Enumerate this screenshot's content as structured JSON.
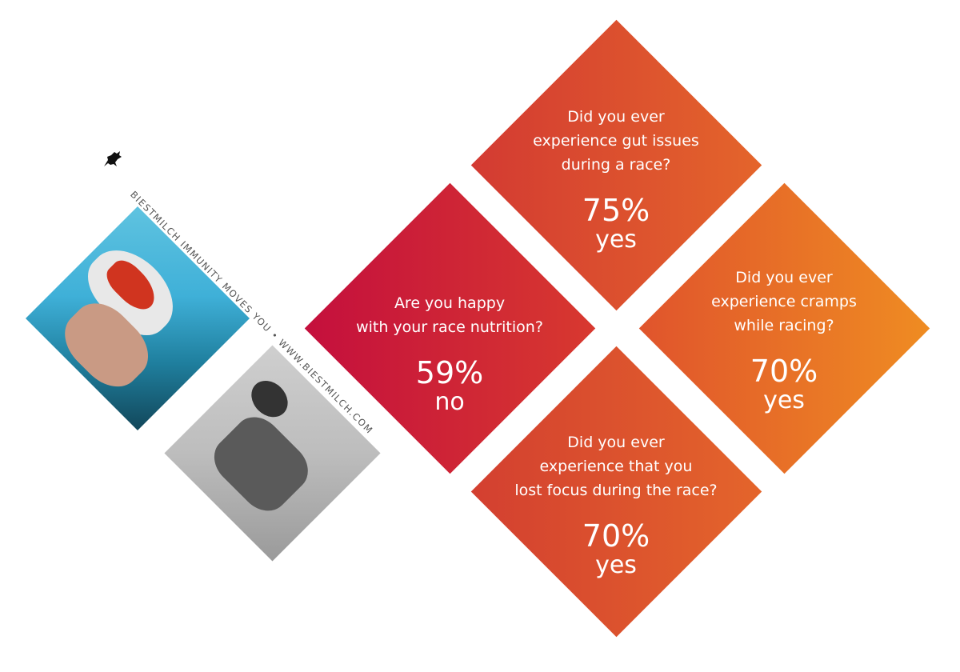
{
  "brand": {
    "logo": "Biestmilch",
    "tagline": "BIESTMILCH IMMUNITY MOVES YOU • WWW.BIESTMILCH.COM"
  },
  "photos": [
    {
      "name": "swimmer-photo",
      "subject": "swimmer with cap and goggles in pool"
    },
    {
      "name": "cyclist-photo",
      "subject": "triathlete cyclist with helmet number 25"
    }
  ],
  "colors": {
    "gradient_start": "#c40f3d",
    "gradient_end": "#ef8c22",
    "text": "#ffffff"
  },
  "cards": [
    {
      "id": "nutrition",
      "question": "Are you happy\nwith your race nutrition?",
      "percent": "59%",
      "answer": "no"
    },
    {
      "id": "gut",
      "question": "Did you ever\nexperience gut issues\nduring a race?",
      "percent": "75%",
      "answer": "yes"
    },
    {
      "id": "cramps",
      "question": "Did you ever\nexperience cramps\nwhile racing?",
      "percent": "70%",
      "answer": "yes"
    },
    {
      "id": "focus",
      "question": "Did you ever\nexperience that you\nlost focus during the race?",
      "percent": "70%",
      "answer": "yes"
    }
  ]
}
